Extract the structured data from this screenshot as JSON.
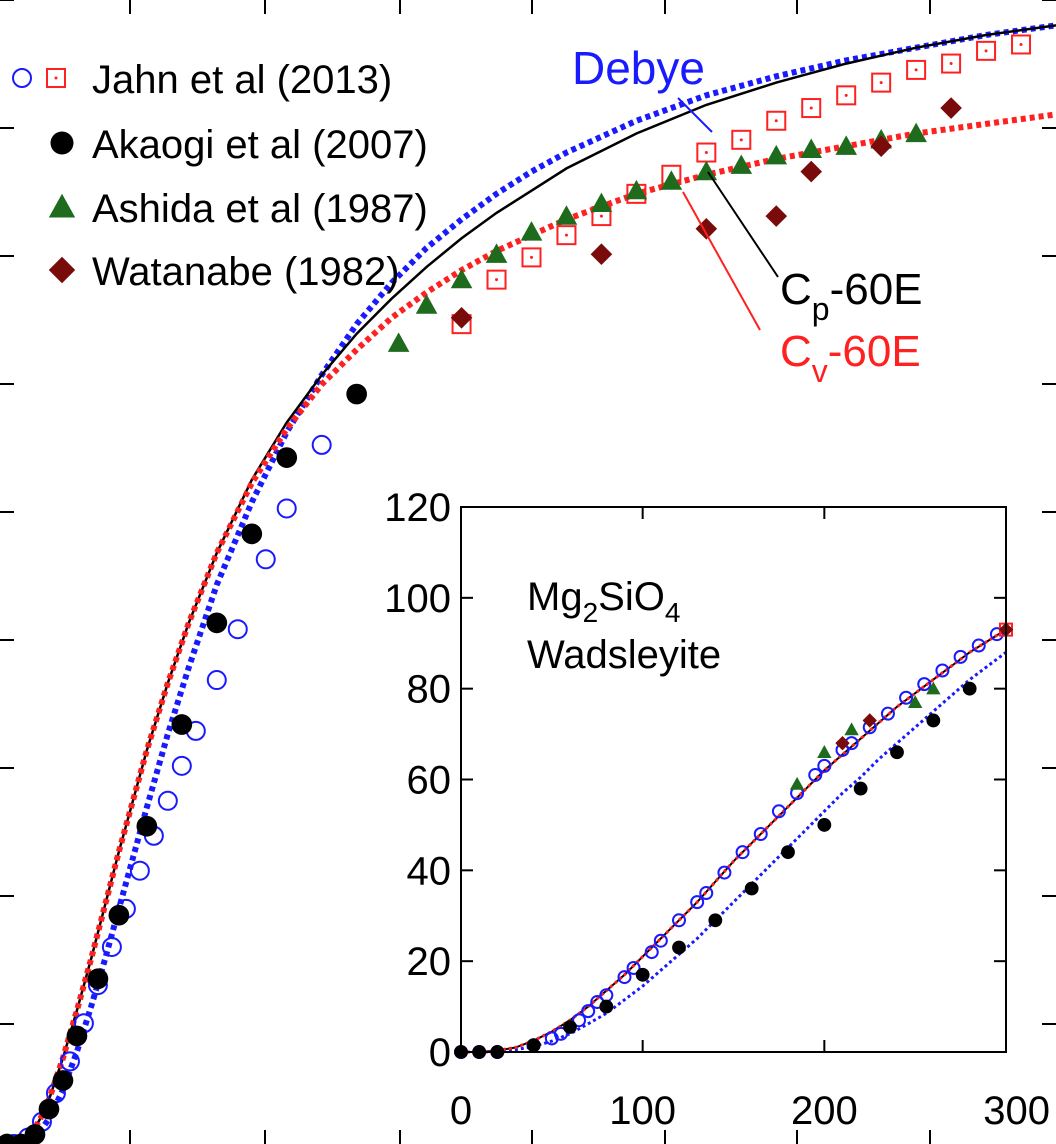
{
  "chart_data": [
    {
      "type": "scatter",
      "title": "",
      "xlabel": "",
      "ylabel": "",
      "xlim": [
        -10,
        1500
      ],
      "ylim": [
        0,
        180
      ],
      "grid": false,
      "legend": {
        "placement": "top-left"
      },
      "legend_entries": [
        {
          "label": "Jahn et al (2013)",
          "markers": [
            "circle-open",
            "square-open-dot"
          ],
          "colors": [
            "#1a1aff",
            "#ff2020"
          ]
        },
        {
          "label": "Akaogi et al (2007)",
          "markers": [
            "circle-filled"
          ],
          "colors": [
            "#000000"
          ]
        },
        {
          "label": "Ashida et al (1987)",
          "markers": [
            "triangle-filled"
          ],
          "colors": [
            "#1e6b1e"
          ]
        },
        {
          "label": "Watanabe (1982)",
          "markers": [
            "diamond-filled"
          ],
          "colors": [
            "#7a0b0b"
          ]
        }
      ],
      "annotations": [
        {
          "text": "Debye",
          "color": "#1a1aff"
        },
        {
          "text": "C",
          "sub": "p",
          "rest": "-60E",
          "color": "#000000"
        },
        {
          "text": "C",
          "sub": "v",
          "rest": "-60E",
          "color": "#ff2020"
        }
      ],
      "series": [
        {
          "name": "Debye",
          "style": "dotted",
          "color": "#1a1aff",
          "x": [
            0,
            10,
            20,
            30,
            40,
            50,
            60,
            80,
            100,
            120,
            140,
            160,
            180,
            200,
            230,
            260,
            300,
            350,
            400,
            450,
            500,
            550,
            600,
            650,
            700,
            750,
            800,
            900,
            1000,
            1100,
            1200,
            1300,
            1400,
            1500
          ],
          "y": [
            0,
            0,
            0.1,
            0.5,
            1.2,
            2.4,
            4.0,
            8.5,
            14.5,
            21.5,
            29,
            37,
            45,
            53,
            64.5,
            75,
            88,
            101,
            112,
            121,
            129,
            135.5,
            141,
            145.5,
            149.5,
            153,
            156,
            161,
            165,
            168,
            170.5,
            172.5,
            174.5,
            176
          ]
        },
        {
          "name": "Cp-60E",
          "style": "solid",
          "color": "#000000",
          "x": [
            0,
            10,
            20,
            30,
            40,
            50,
            60,
            80,
            100,
            120,
            140,
            160,
            180,
            200,
            230,
            260,
            300,
            350,
            400,
            450,
            500,
            550,
            600,
            650,
            700,
            750,
            800,
            900,
            1000,
            1100,
            1200,
            1300,
            1400,
            1500
          ],
          "y": [
            0,
            0,
            0.3,
            1.0,
            2.5,
            4.5,
            7.0,
            13.5,
            21,
            29,
            37.5,
            46,
            54,
            62,
            72.5,
            82,
            93,
            104.5,
            113.5,
            121,
            127.5,
            133,
            138,
            142.5,
            146.5,
            150,
            153.5,
            159,
            163.5,
            167,
            170,
            172.5,
            174.5,
            176
          ]
        },
        {
          "name": "Cv-60E",
          "style": "dotted",
          "color": "#ff2020",
          "x": [
            0,
            10,
            20,
            30,
            40,
            50,
            60,
            80,
            100,
            120,
            140,
            160,
            180,
            200,
            230,
            260,
            300,
            350,
            400,
            450,
            500,
            550,
            600,
            650,
            700,
            750,
            800,
            900,
            1000,
            1100,
            1200,
            1300,
            1400,
            1500
          ],
          "y": [
            0,
            0,
            0.3,
            1.0,
            2.5,
            4.5,
            7.0,
            13.5,
            21,
            29,
            37.5,
            46,
            54,
            62,
            72.5,
            82,
            93,
            104,
            112.5,
            119.5,
            125,
            130,
            134,
            137.5,
            140.5,
            143,
            145.5,
            149.5,
            152.5,
            155,
            157,
            159,
            160.5,
            162
          ]
        },
        {
          "name": "Jahn et al (2013)",
          "marker": "circle-open",
          "color": "#1a1aff",
          "x": [
            10,
            30,
            50,
            70,
            90,
            110,
            130,
            150,
            170,
            190,
            210,
            230,
            250,
            270,
            300,
            330,
            370,
            400,
            450,
            500
          ],
          "y": [
            0,
            1,
            3.5,
            8,
            13,
            19,
            25,
            31,
            37,
            43,
            48.5,
            54,
            59.5,
            65,
            73,
            81,
            92,
            100,
            110,
            118
          ]
        },
        {
          "name": "Jahn et al (2013)",
          "marker": "square-open-dot",
          "color": "#ff2020",
          "x": [
            650,
            700,
            750,
            800,
            850,
            900,
            950,
            1000,
            1050,
            1100,
            1150,
            1200,
            1250,
            1300,
            1350,
            1400,
            1450
          ],
          "y": [
            129,
            136,
            139.5,
            143,
            146,
            149.5,
            152.5,
            156,
            158,
            161,
            163,
            165,
            167,
            169,
            170,
            172,
            173
          ]
        },
        {
          "name": "Akaogi et al (2007)",
          "marker": "circle-filled",
          "color": "#000000",
          "x": [
            0,
            20,
            40,
            60,
            80,
            100,
            130,
            160,
            200,
            250,
            300,
            350,
            400,
            500
          ],
          "y": [
            0,
            0,
            1.5,
            5.5,
            10,
            17,
            26,
            36,
            50,
            66,
            82,
            96,
            108,
            118
          ]
        },
        {
          "name": "Ashida et al (1987)",
          "marker": "triangle-filled",
          "color": "#1e6b1e",
          "x": [
            560,
            600,
            650,
            700,
            750,
            800,
            850,
            900,
            950,
            1000,
            1050,
            1100,
            1150,
            1200,
            1250,
            1300
          ],
          "y": [
            126,
            132,
            136,
            140,
            143.5,
            146,
            148,
            150,
            151.5,
            153,
            154,
            155.5,
            156.5,
            157,
            158,
            159
          ]
        },
        {
          "name": "Watanabe (1982)",
          "marker": "diamond-filled",
          "color": "#7a0b0b",
          "x": [
            650,
            850,
            1000,
            1100,
            1150,
            1250,
            1350
          ],
          "y": [
            130,
            140,
            144,
            146,
            153,
            157,
            163
          ]
        }
      ]
    },
    {
      "type": "scatter",
      "title": "",
      "inset_label": {
        "line1_main": "Mg",
        "sub1": "2",
        "mid1": "SiO",
        "sub2": "4",
        "line2": "Wadsleyite"
      },
      "xlim": [
        0,
        300
      ],
      "ylim": [
        0,
        120
      ],
      "x_ticks": [
        "0",
        "100",
        "200",
        "300"
      ],
      "y_ticks": [
        "0",
        "20",
        "40",
        "60",
        "80",
        "100",
        "120"
      ],
      "series": [
        {
          "name": "Debye",
          "style": "dotted",
          "color": "#1a1aff",
          "x": [
            0,
            10,
            20,
            30,
            40,
            50,
            60,
            70,
            80,
            90,
            100,
            110,
            120,
            130,
            140,
            150,
            160,
            170,
            180,
            190,
            200,
            210,
            220,
            230,
            240,
            250,
            260,
            270,
            280,
            290,
            300
          ],
          "y": [
            0,
            0,
            0.1,
            0.5,
            1.2,
            2.4,
            4.0,
            6.2,
            8.5,
            11.5,
            14.5,
            18,
            21.5,
            25,
            29,
            33,
            37,
            41,
            45,
            49,
            53,
            57,
            60.5,
            64.5,
            68,
            71.5,
            75,
            78.5,
            82,
            85,
            88
          ]
        },
        {
          "name": "Cp-60E",
          "style": "solid",
          "color": "#000000",
          "x": [
            0,
            10,
            20,
            30,
            40,
            50,
            60,
            70,
            80,
            90,
            100,
            110,
            120,
            130,
            140,
            150,
            160,
            170,
            180,
            190,
            200,
            210,
            220,
            230,
            240,
            250,
            260,
            270,
            280,
            290,
            300
          ],
          "y": [
            0,
            0,
            0.3,
            1.0,
            2.5,
            4.5,
            7.0,
            10,
            13.5,
            17,
            21,
            25,
            29,
            33,
            37.5,
            42,
            46,
            50,
            54,
            58,
            62,
            65.5,
            69,
            72.5,
            76,
            79,
            82,
            85,
            88,
            90.5,
            93
          ]
        },
        {
          "name": "Cv-60E",
          "style": "dotted",
          "color": "#ff2020",
          "x": [
            0,
            10,
            20,
            30,
            40,
            50,
            60,
            70,
            80,
            90,
            100,
            110,
            120,
            130,
            140,
            150,
            160,
            170,
            180,
            190,
            200,
            210,
            220,
            230,
            240,
            250,
            260,
            270,
            280,
            290,
            300
          ],
          "y": [
            0,
            0,
            0.3,
            1.0,
            2.5,
            4.5,
            7.0,
            10,
            13.5,
            17,
            21,
            25,
            29,
            33,
            37.5,
            42,
            46,
            50,
            54,
            58,
            62,
            65.5,
            69,
            72.5,
            76,
            79,
            82,
            85,
            88,
            90.5,
            93
          ]
        },
        {
          "name": "Jahn et al (2013)",
          "marker": "circle-open",
          "color": "#1a1aff",
          "x": [
            0,
            10,
            20,
            40,
            50,
            55,
            65,
            70,
            75,
            80,
            90,
            95,
            105,
            110,
            120,
            130,
            135,
            145,
            155,
            165,
            175,
            185,
            195,
            200,
            210,
            215,
            225,
            235,
            245,
            255,
            265,
            275,
            285,
            295
          ],
          "y": [
            0,
            0,
            0,
            1.5,
            3,
            4,
            7,
            9,
            11,
            12.5,
            16.5,
            18.5,
            22,
            24.5,
            29,
            33,
            35,
            39.5,
            44,
            48,
            53,
            57,
            61,
            63,
            66.5,
            68,
            71.5,
            74.5,
            78,
            81,
            84,
            87,
            89.5,
            92
          ]
        },
        {
          "name": "Jahn et al (2013)",
          "marker": "square-open-dot",
          "color": "#ff2020",
          "x": [
            300
          ],
          "y": [
            93
          ]
        },
        {
          "name": "Akaogi et al (2007)",
          "marker": "circle-filled",
          "color": "#000000",
          "x": [
            0,
            10,
            20,
            40,
            60,
            80,
            100,
            120,
            140,
            160,
            180,
            200,
            220,
            240,
            260,
            280
          ],
          "y": [
            0,
            0,
            0,
            1.5,
            5.5,
            10,
            17,
            23,
            29,
            36,
            44,
            50,
            58,
            66,
            73,
            80
          ]
        },
        {
          "name": "Ashida et al (1987)",
          "marker": "triangle-filled",
          "color": "#1e6b1e",
          "x": [
            185,
            200,
            215,
            250,
            260
          ],
          "y": [
            59,
            66,
            71,
            77,
            80
          ]
        },
        {
          "name": "Watanabe (1982)",
          "marker": "diamond-filled",
          "color": "#7a0b0b",
          "x": [
            210,
            225,
            300
          ],
          "y": [
            68,
            73,
            93
          ]
        }
      ]
    }
  ]
}
